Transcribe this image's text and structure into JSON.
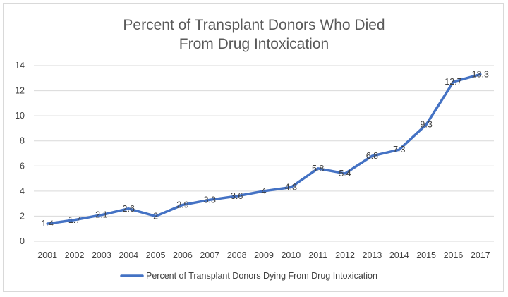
{
  "chart_data": {
    "type": "line",
    "title": [
      "Percent of Transplant Donors Who Died",
      "From Drug Intoxication"
    ],
    "xlabel": "",
    "ylabel": "",
    "categories": [
      "2001",
      "2002",
      "2003",
      "2004",
      "2005",
      "2006",
      "2007",
      "2008",
      "2009",
      "2010",
      "2011",
      "2012",
      "2013",
      "2014",
      "2015",
      "2016",
      "2017"
    ],
    "series": [
      {
        "name": "Percent of Transplant Donors Dying From Drug Intoxication",
        "values": [
          1.4,
          1.7,
          2.1,
          2.6,
          2,
          2.9,
          3.3,
          3.6,
          4,
          4.3,
          5.8,
          5.4,
          6.8,
          7.3,
          9.3,
          12.7,
          13.3
        ],
        "labels": [
          "1.4",
          "1.7",
          "2.1",
          "2.6",
          "2",
          "2.9",
          "3.3",
          "3.6",
          "4",
          "4.3",
          "5.8",
          "5.4",
          "6.8",
          "7.3",
          "9.3",
          "12.7",
          "13.3"
        ],
        "color": "#4472c4"
      }
    ],
    "ylim": [
      0,
      14
    ],
    "yticks": [
      "0",
      "2",
      "4",
      "6",
      "8",
      "10",
      "12",
      "14"
    ],
    "grid": true,
    "legend": "bottom"
  }
}
